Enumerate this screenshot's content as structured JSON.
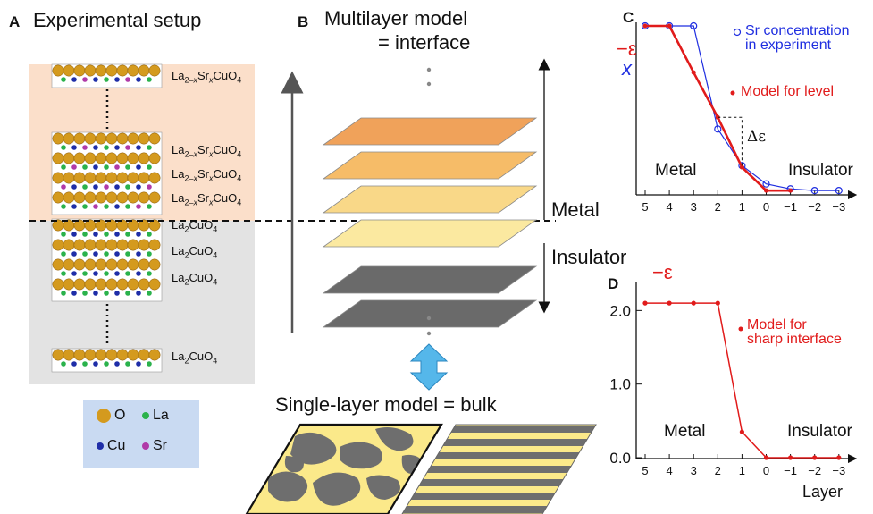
{
  "panelA": {
    "label": "A",
    "title": "Experimental setup",
    "layers": [
      {
        "text": "La2–xSrxCuO4",
        "parts": [
          "La",
          "2–x",
          "Sr",
          "x",
          "CuO",
          "4"
        ],
        "doped": true
      },
      {
        "text": "La2–xSrxCuO4",
        "parts": [
          "La",
          "2–x",
          "Sr",
          "x",
          "CuO",
          "4"
        ],
        "doped": true
      },
      {
        "text": "La2–xSrxCuO4",
        "parts": [
          "La",
          "2–x",
          "Sr",
          "x",
          "CuO",
          "4"
        ],
        "doped": true
      },
      {
        "text": "La2–xSrxCuO4",
        "parts": [
          "La",
          "2–x",
          "Sr",
          "x",
          "CuO",
          "4"
        ],
        "doped": true
      },
      {
        "text": "La2CuO4",
        "parts": [
          "La",
          "2",
          "CuO",
          "4"
        ],
        "doped": false
      },
      {
        "text": "La2CuO4",
        "parts": [
          "La",
          "2",
          "CuO",
          "4"
        ],
        "doped": false
      },
      {
        "text": "La2CuO4",
        "parts": [
          "La",
          "2",
          "CuO",
          "4"
        ],
        "doped": false
      },
      {
        "text": "La2CuO4",
        "parts": [
          "La",
          "2",
          "CuO",
          "4"
        ],
        "doped": false
      }
    ],
    "legend": [
      {
        "symbol": "O",
        "color": "#d49a1e"
      },
      {
        "symbol": "La",
        "color": "#2bb24c"
      },
      {
        "symbol": "Cu",
        "color": "#1f2ea8"
      },
      {
        "symbol": "Sr",
        "color": "#b03aa8"
      }
    ],
    "colors": {
      "doped_bg": "#fbdfca",
      "undoped_bg": "#e3e3e3",
      "legend_bg": "#c9daf2"
    }
  },
  "panelB": {
    "label": "B",
    "title_line1": "Multilayer model",
    "title_line2": "= interface",
    "metal_label": "Metal",
    "insulator_label": "Insulator",
    "single_layer_title": "Single-layer model = bulk",
    "layer_colors": [
      "#f0a25a",
      "#f6bc68",
      "#f9d888",
      "#fbe9a0",
      "#6a6a6a",
      "#6a6a6a"
    ]
  },
  "panelC": {
    "label": "C",
    "y_label_1": "−ε",
    "y_label_2": "x",
    "legend_1_line1": "Sr concentration",
    "legend_1_line2": "in experiment",
    "legend_2": "Model for level",
    "delta_label": "Δε",
    "metal_label": "Metal",
    "insulator_label": "Insulator",
    "x_ticks": [
      "5",
      "4",
      "3",
      "2",
      "1",
      "0",
      "−1",
      "−2",
      "−3"
    ]
  },
  "panelD": {
    "label": "D",
    "y_label": "−ε",
    "legend": "Model for",
    "legend_line2": "sharp interface",
    "metal_label": "Metal",
    "insulator_label": "Insulator",
    "x_label": "Layer",
    "x_ticks": [
      "5",
      "4",
      "3",
      "2",
      "1",
      "0",
      "−1",
      "−2",
      "−3"
    ],
    "y_ticks": [
      "2.0",
      "1.0",
      "0.0"
    ]
  },
  "chart_data": [
    {
      "type": "line",
      "panel": "C",
      "x": [
        5,
        4,
        3,
        2,
        1,
        0,
        -1,
        -2,
        -3
      ],
      "series": [
        {
          "name": "Sr concentration in experiment",
          "color": "#1f2ee0",
          "marker": "open-circle",
          "values": [
            1.0,
            1.0,
            1.0,
            0.38,
            0.16,
            0.05,
            0.02,
            0.01,
            0.01
          ]
        },
        {
          "name": "Model for level",
          "color": "#e11b1b",
          "marker": "dot",
          "values": [
            1.0,
            1.0,
            0.72,
            0.45,
            0.15,
            0.01,
            0.01,
            null,
            null
          ]
        }
      ],
      "delta_epsilon": {
        "x": 1,
        "from": 0.15,
        "to": 0.45
      },
      "xlim": [
        5,
        -3
      ]
    },
    {
      "type": "line",
      "panel": "D",
      "x": [
        5,
        4,
        3,
        2,
        1,
        0,
        -1,
        -2,
        -3
      ],
      "series": [
        {
          "name": "Model for sharp interface",
          "color": "#e11b1b",
          "marker": "dot",
          "values": [
            2.1,
            2.1,
            2.1,
            2.1,
            0.35,
            0.0,
            0.0,
            0.0,
            0.0
          ]
        }
      ],
      "xlabel": "Layer",
      "ylim": [
        0,
        2.3
      ],
      "xlim": [
        5,
        -3
      ]
    }
  ]
}
